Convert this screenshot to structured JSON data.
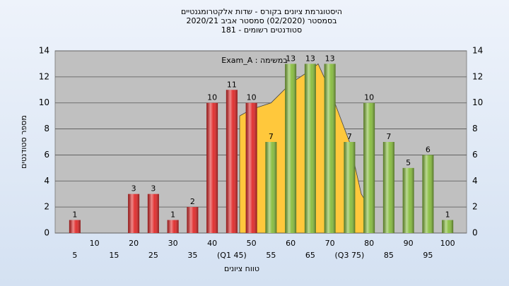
{
  "chart_data": {
    "type": "bar",
    "title": [
      "היסטוגרמת ציונים בקורס - שדות אלקטרומגנטיים",
      "בסמסטר  (02/2020)  סמסטר אביב 2020/21",
      "סטודנטים רשומים - 181"
    ],
    "annotation": "במשימה : Exam_A",
    "xlabel": "טווח ציונים",
    "ylabel": "מספר סטודנטים",
    "categories": [
      "5",
      "10",
      "15",
      "20",
      "25",
      "30",
      "35",
      "40",
      "(Q1 45)",
      "50",
      "55",
      "60",
      "65",
      "70",
      "(Q3 75)",
      "80",
      "85",
      "90",
      "95",
      "100"
    ],
    "values": [
      1,
      0,
      0,
      3,
      3,
      1,
      2,
      10,
      11,
      10,
      7,
      13,
      13,
      13,
      7,
      10,
      7,
      5,
      6,
      1
    ],
    "colors": [
      "#e02828",
      "#e02828",
      "#e02828",
      "#e02828",
      "#e02828",
      "#e02828",
      "#e02828",
      "#e02828",
      "#e02828",
      "#e02828",
      "#86bc3c",
      "#86bc3c",
      "#86bc3c",
      "#86bc3c",
      "#86bc3c",
      "#86bc3c",
      "#86bc3c",
      "#86bc3c",
      "#86bc3c",
      "#86bc3c"
    ],
    "area": {
      "x": [
        47,
        50,
        55,
        60,
        65,
        67,
        70,
        75,
        78,
        80
      ],
      "values": [
        9,
        9.5,
        10,
        11.5,
        12.5,
        13,
        11,
        7,
        3,
        2
      ],
      "color": "#ffc83c"
    },
    "ylim": [
      0,
      14
    ],
    "yticks": [
      0,
      2,
      4,
      6,
      8,
      10,
      12,
      14
    ],
    "grid": true
  }
}
